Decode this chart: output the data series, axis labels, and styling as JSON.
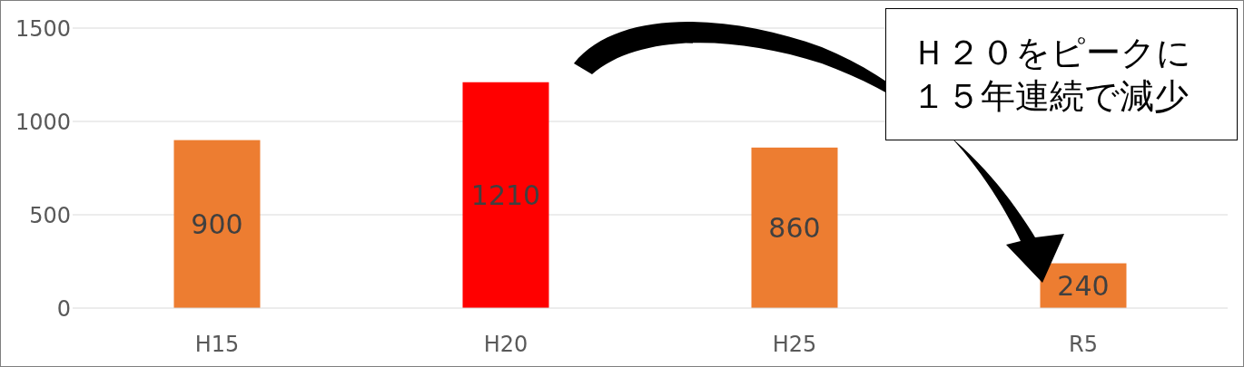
{
  "chart_data": {
    "type": "bar",
    "categories": [
      "H15",
      "H20",
      "H25",
      "R5"
    ],
    "values": [
      900,
      1210,
      860,
      240
    ],
    "colors": [
      "#ed7d31",
      "#ff0000",
      "#ed7d31",
      "#ed7d31"
    ],
    "ylim": [
      0,
      1500
    ],
    "yticks": [
      0,
      500,
      1000,
      1500
    ],
    "grid": "y",
    "data_labels": true,
    "annotations": [
      "Ｈ２０をピークに１５年連続で減少"
    ]
  }
}
